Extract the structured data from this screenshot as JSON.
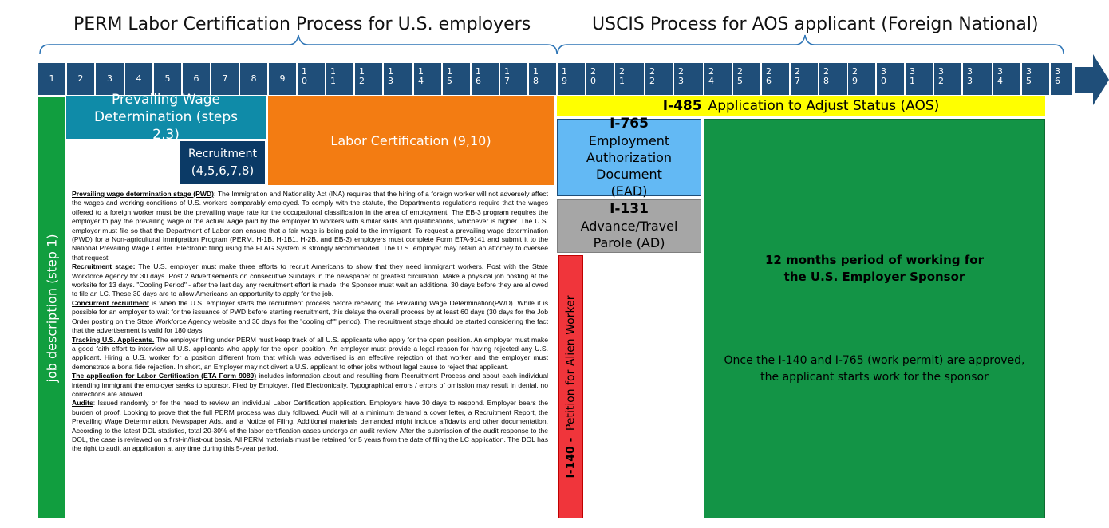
{
  "headers": {
    "left": "PERM Labor Certification Process for U.S. employers",
    "right": "USCIS Process for AOS applicant (Foreign National)"
  },
  "timeline": {
    "steps": [
      "1",
      "2",
      "3",
      "4",
      "5",
      "6",
      "7",
      "8",
      "9",
      "10",
      "11",
      "12",
      "13",
      "14",
      "15",
      "16",
      "17",
      "18",
      "19",
      "20",
      "21",
      "22",
      "23",
      "24",
      "25",
      "26",
      "27",
      "28",
      "29",
      "30",
      "31",
      "32",
      "33",
      "34",
      "35",
      "36"
    ]
  },
  "blocks": {
    "job_description": "job description  (step  1)",
    "prevailing_wage": "Prevailing Wage Determination (steps 2,3)",
    "recruitment_title": "Recruitment",
    "recruitment_steps": "(4,5,6,7,8)",
    "labor_cert": "Labor Certification (9,10)",
    "i485_form": "I-485",
    "i485_label": "Application to Adjust Status (AOS)",
    "i765_form": "I-765",
    "i765_label": "Employment Authorization Document (EAD)",
    "i131_form": "I-131",
    "i131_label": "Advance/Travel Parole (AD)",
    "i140_form": "I-140 -",
    "i140_label": "Petition for Alien Worker",
    "work_title": "12 months period of working for the U.S. Employer Sponsor",
    "work_desc": "Once the I-140 and I-765 (work permit) are approved, the applicant starts work for the sponsor"
  },
  "description": [
    {
      "head": "Prevailing wage determination stage (PWD)",
      "sep": ": ",
      "text": "The Immigration and Nationality Act (INA) requires that the hiring of a foreign worker will not adversely affect the wages and working conditions of U.S. workers comparably employed. To comply with the statute, the Department's regulations require that the wages offered to a foreign worker must be the prevailing wage rate for the occupational classification in the area of employment. The EB-3 program requires the employer to pay the prevailing wage or the actual wage paid by the employer to workers with similar skills and qualifications, whichever is higher. The U.S. employer must file so that the Department of Labor can ensure that a fair wage is being paid to the immigrant. To request a prevailing wage determination (PWD) for a Non-agricultural Immigration Program (PERM, H-1B, H-1B1, H-2B, and EB-3) employers must complete Form ETA-9141 and submit it to the National Prevailing Wage Center. Electronic filing using the FLAG System is strongly recommended. The U.S. employer may retain an attorney to oversee that request."
    },
    {
      "head": "Recruitment stage:",
      "sep": " ",
      "text": "The U.S. employer must make three efforts to recruit Americans to show that they need immigrant workers. Post with the State Workforce Agency for 30 days. Post 2 Advertisements on consecutive Sundays in the newspaper of greatest circulation. Make a physical job posting at the worksite for 13 days. \"Cooling Period\" - after the last day any recruitment effort is made, the Sponsor must wait an additional 30 days before they are allowed to file an LC. These 30 days are to allow Americans an opportunity to apply for the job."
    },
    {
      "head": "Concurrent recruitment",
      "sep": " ",
      "text": "is when the U.S. employer starts the recruitment process before receiving the Prevailing Wage Determination(PWD). While it is possible for an employer to wait for the issuance of PWD before starting recruitment, this delays the overall process by at least 60 days (30 days for the Job Order posting on the State Workforce Agency website and 30 days for the \"cooling off\" period). The recruitment stage should be started considering the fact that the advertisement is valid for 180 days."
    },
    {
      "head": "Tracking U.S. Applicants.",
      "sep": " ",
      "text": "The employer filing under PERM must keep track of all U.S. applicants who apply for the open position. An employer must make a good faith effort to interview all U.S. applicants who apply for the open position. An employer must provide a legal reason for having rejected any U.S. applicant. Hiring a U.S. worker for a position different from that which was advertised is an effective rejection of that worker and the employer must demonstrate a bona fide rejection. In short, an Employer may not divert a U.S. applicant to other jobs without legal cause to reject that applicant."
    },
    {
      "head": "The application for Labor Certification (ETA Form 9089)",
      "sep": " ",
      "text": "includes information about and resulting from Recruitment Process and about each individual intending immigrant the employer seeks to sponsor. Filed by Employer, filed Electronically. Typographical errors / errors of omission may result in denial, no corrections are allowed."
    },
    {
      "head": "Audits",
      "sep": ": ",
      "text": "Issued randomly or for the need to review an individual Labor Certification application. Employers have 30 days to respond. Employer bears the burden of proof. Looking to prove that the full PERM process was duly followed. Audit will at a minimum demand a cover letter, a Recruitment Report, the Prevailing Wage Determination, Newspaper Ads, and a Notice of Filing. Additional materials demanded might include affidavits and other documentation. According to the latest DOL statistics, total 20-30% of the labor certification cases undergo an audit review. After the submission of the audit response to the DOL, the case is reviewed on a first-in/first-out basis. All PERM materials must be retained for 5 years from the date of filing the LC application. The DOL has the right to audit an application at any time during this 5-year period."
    }
  ],
  "colors": {
    "timeline": "#1f4e79",
    "green": "#119e3f",
    "teal": "#0f8ba8",
    "navy": "#0b3a66",
    "orange": "#f37c12",
    "yellow": "#ffff00",
    "light_blue": "#63b9f4",
    "gray": "#a6a6a6",
    "red": "#f0353b",
    "dark_green": "#139446"
  }
}
